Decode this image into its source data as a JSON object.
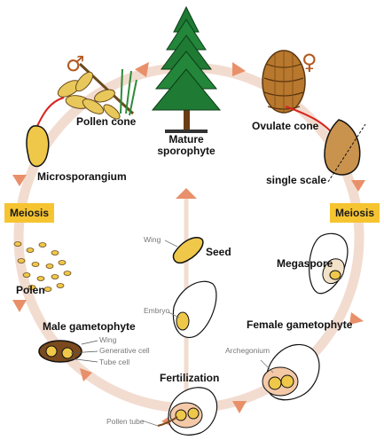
{
  "labels": {
    "pollen_cone": "Pollen cone",
    "mature_sporophyte": "Mature\nsporophyte",
    "ovulate_cone": "Ovulate cone",
    "microsporangium": "Microsporangium",
    "single_scale": "single scale",
    "meiosis_left": "Meiosis",
    "meiosis_right": "Meiosis",
    "seed": "Seed",
    "wing_seed": "Wing",
    "polen": "Polen",
    "megaspore": "Megaspore",
    "embryo": "Embryo",
    "male_gametophyte": "Male gametophyte",
    "female_gametophyte": "Female gametophyte",
    "wing_pollen": "Wing",
    "generative_cell": "Generative cell",
    "tube_cell": "Tube cell",
    "archegonium": "Archegonium",
    "fertilization": "Fertilization",
    "pollen_tube": "Pollen tube"
  },
  "symbols": {
    "male": "♂",
    "female": "♀"
  },
  "colors": {
    "cycle_ring": "#f2dcd0",
    "arrow": "#e8906a",
    "meiosis_badge": "#f6c431",
    "tree": "#1f7a33",
    "cone": "#b8782d",
    "sex_symbol": "#b25a1e"
  }
}
